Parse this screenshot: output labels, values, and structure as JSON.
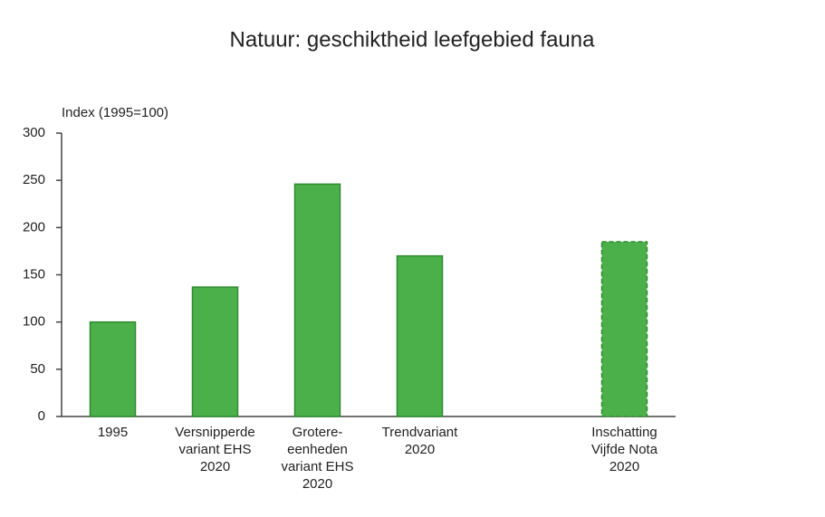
{
  "chart_data": {
    "type": "bar",
    "title": "Natuur: geschiktheid leefgebied fauna",
    "y_label": "Index (1995=100)",
    "categories": [
      "1995",
      "Versnipperde\nvariant EHS\n2020",
      "Grotere-\neenheden\nvariant EHS\n2020",
      "Trendvariant\n2020",
      null,
      "Inschatting\nVijfde Nota\n2020"
    ],
    "values": [
      100,
      137,
      246,
      170,
      null,
      185
    ],
    "dashed": [
      false,
      false,
      false,
      false,
      false,
      true
    ],
    "color": "#4cb04a",
    "edge_color": "#2f8a2f",
    "ylim": [
      0,
      300
    ],
    "yticks": [
      0,
      50,
      100,
      150,
      200,
      250,
      300
    ],
    "grid": false
  }
}
